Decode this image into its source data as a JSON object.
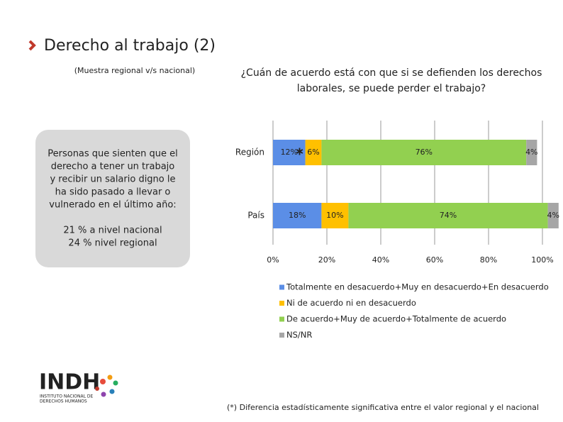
{
  "slide": {
    "title": "Derecho al trabajo (2)",
    "subtitle": "(Muestra regional v/s nacional)",
    "box_lines": [
      "Personas que sienten que el",
      "derecho a tener un trabajo",
      "y recibir un salario digno le",
      "ha sido pasado a llevar o",
      "vulnerado en el último año:"
    ],
    "box_stats": [
      "21 % a nivel nacional",
      "24 % nivel regional"
    ],
    "footnote": "(*) Diferencia estadísticamente significativa entre el valor regional y el nacional",
    "logo": {
      "name": "INDH",
      "lines": [
        "INSTITUTO NACIONAL DE",
        "DERECHOS HUMANOS"
      ]
    }
  },
  "chart_data": {
    "type": "stacked-bar-horizontal",
    "title_lines": [
      "¿Cuán de acuerdo está con que si se defienden los derechos",
      "laborales, se puede perder el trabajo?"
    ],
    "categories": [
      "Región",
      "País"
    ],
    "series": [
      {
        "name": "Totalmente en desacuerdo+Muy en desacuerdo+En desacuerdo",
        "color": "#5b8ee6",
        "values": [
          12,
          18
        ],
        "value_labels": [
          "12%",
          "18%"
        ]
      },
      {
        "name": "Ni de acuerdo ni en desacuerdo",
        "color": "#ffc000",
        "values": [
          6,
          10
        ],
        "value_labels": [
          "6%",
          "10%"
        ]
      },
      {
        "name": "De acuerdo+Muy de acuerdo+Totalmente de acuerdo",
        "color": "#92d050",
        "values": [
          76,
          74
        ],
        "value_labels": [
          "76%",
          "74%"
        ]
      },
      {
        "name": "NS/NR",
        "color": "#a6a6a6",
        "values": [
          4,
          4
        ],
        "value_labels": [
          "4%",
          "4%"
        ]
      }
    ],
    "annotation": "∗",
    "xlim": [
      0,
      100
    ],
    "xticks": [
      {
        "value": 0,
        "label": "0%"
      },
      {
        "value": 20,
        "label": "20%"
      },
      {
        "value": 40,
        "label": "40%"
      },
      {
        "value": 60,
        "label": "60%"
      },
      {
        "value": 80,
        "label": "80%"
      },
      {
        "value": 100,
        "label": "100%"
      }
    ],
    "grid": true
  }
}
